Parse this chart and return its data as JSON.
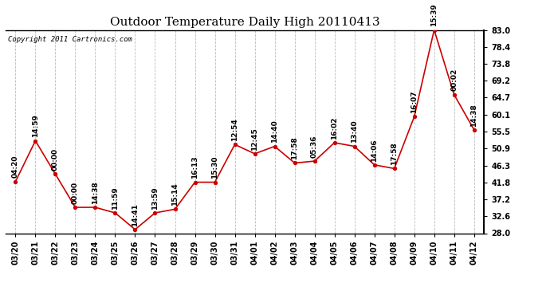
{
  "title": "Outdoor Temperature Daily High 20110413",
  "copyright_text": "Copyright 2011 Cartronics.com",
  "dates": [
    "03/20",
    "03/21",
    "03/22",
    "03/23",
    "03/24",
    "03/25",
    "03/26",
    "03/27",
    "03/28",
    "03/29",
    "03/30",
    "03/31",
    "04/01",
    "04/02",
    "04/03",
    "04/04",
    "04/05",
    "04/06",
    "04/07",
    "04/08",
    "04/09",
    "04/10",
    "04/11",
    "04/12"
  ],
  "values": [
    42.0,
    53.0,
    44.0,
    35.0,
    35.0,
    33.5,
    29.0,
    33.5,
    34.5,
    41.8,
    41.8,
    52.0,
    49.5,
    51.5,
    47.0,
    47.5,
    52.5,
    51.5,
    46.5,
    45.5,
    59.5,
    83.0,
    65.5,
    56.0
  ],
  "time_labels": [
    "04:20",
    "14:59",
    "00:00",
    "00:00",
    "14:38",
    "11:59",
    "14:41",
    "13:59",
    "15:14",
    "16:13",
    "15:30",
    "12:54",
    "12:45",
    "14:40",
    "17:58",
    "05:36",
    "16:02",
    "13:40",
    "14:06",
    "17:58",
    "16:07",
    "15:39",
    "00:02",
    "14:38"
  ],
  "line_color": "#cc0000",
  "marker_color": "#cc0000",
  "background_color": "#ffffff",
  "grid_color": "#bbbbbb",
  "text_color": "#000000",
  "yticks": [
    28.0,
    32.6,
    37.2,
    41.8,
    46.3,
    50.9,
    55.5,
    60.1,
    64.7,
    69.2,
    73.8,
    78.4,
    83.0
  ],
  "ylim": [
    28.0,
    83.0
  ],
  "title_fontsize": 11,
  "label_fontsize": 6.5,
  "copyright_fontsize": 6.5,
  "tick_fontsize": 7.0
}
